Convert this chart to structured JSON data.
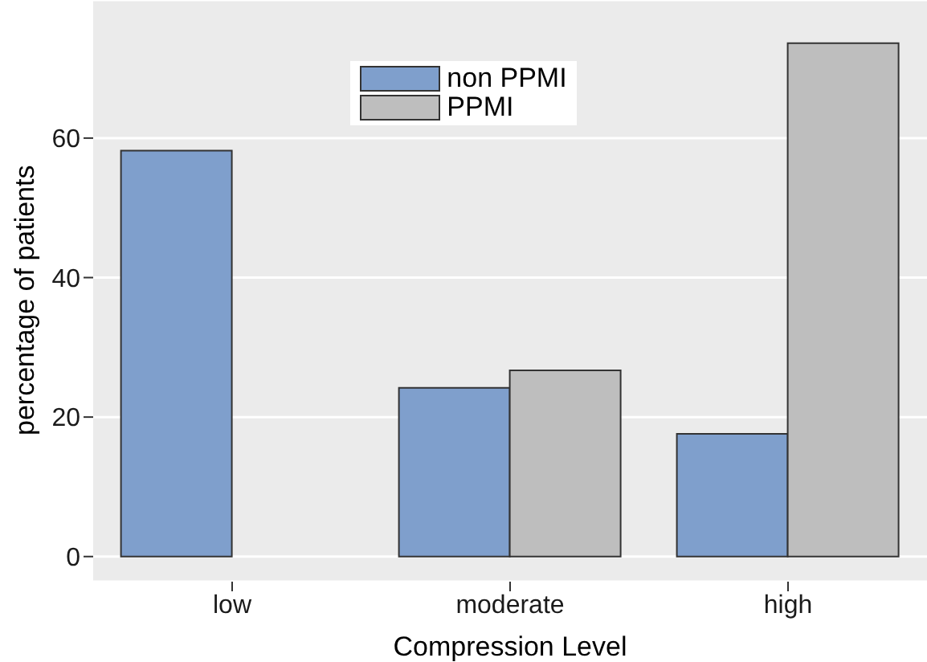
{
  "chart_data": {
    "type": "bar",
    "xlabel": "Compression Level",
    "ylabel": "percentage of patients",
    "categories": [
      "low",
      "moderate",
      "high"
    ],
    "series": [
      {
        "name": "non PPMI",
        "color": "#7f9fcc",
        "values": [
          58.2,
          24.2,
          17.6
        ]
      },
      {
        "name": "PPMI",
        "color": "#bebebe",
        "values": [
          0,
          26.7,
          73.6
        ]
      }
    ],
    "ylim": [
      -3.6,
      79.8
    ],
    "yticks": [
      0,
      20,
      40,
      60
    ],
    "grid": "y",
    "legend": "top"
  }
}
